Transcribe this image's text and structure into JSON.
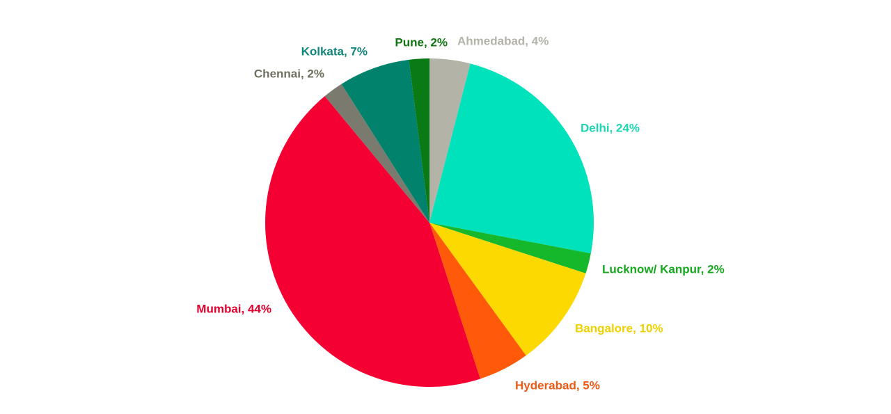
{
  "chart_data": {
    "type": "pie",
    "values": [
      4,
      24,
      2,
      10,
      5,
      44,
      2,
      7,
      2
    ],
    "value_labels": [
      "Ahmedabad, 4%",
      "Delhi, 24%",
      "Lucknow/ Kanpur, 2%",
      "Bangalore, 10%",
      "Hyderabad, 5%",
      "Mumbai, 44%",
      "Chennai, 2%",
      "Kolkata, 7%",
      "Pune, 2%"
    ],
    "colors": [
      "#b3b3a8",
      "#00e2bb",
      "#14b82a",
      "#fcd900",
      "#ff5a0a",
      "#f50032",
      "#7a7a6e",
      "#00826c",
      "#0a7a14"
    ],
    "label_colors": [
      "#b3b3a8",
      "#1fd6b3",
      "#17a81f",
      "#f0d000",
      "#ee5a14",
      "#e3002e",
      "#707060",
      "#13857a",
      "#107510"
    ]
  }
}
